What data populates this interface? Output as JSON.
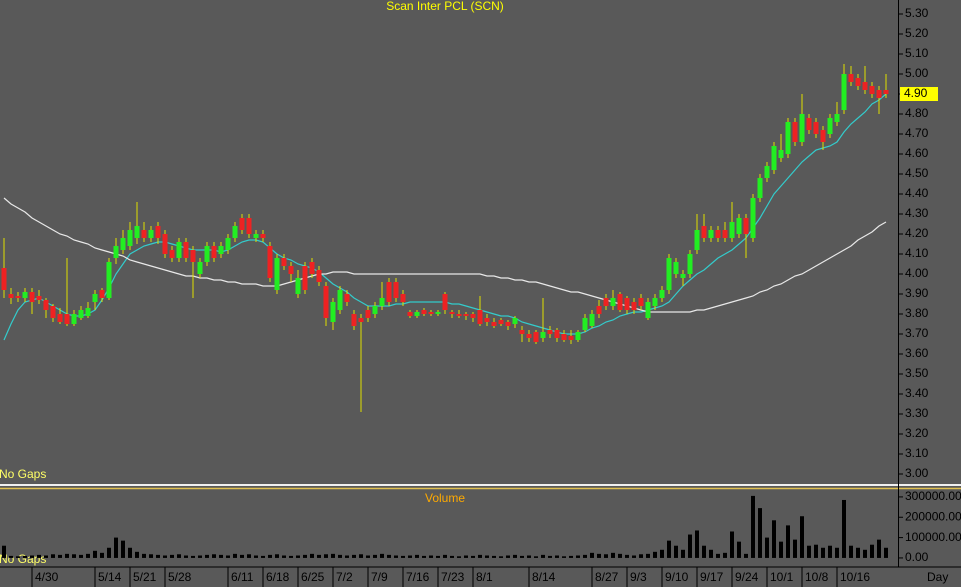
{
  "chart_data": [
    {
      "type": "candlestick",
      "title": "Scan Inter PCL (SCN)",
      "x_label": "Day",
      "annotation": "No Gaps",
      "up_color": "#22ee22",
      "down_color": "#ee2222",
      "wick_color": "#e0e000",
      "grid": false,
      "ylim": [
        2.95,
        5.37
      ],
      "yticks": [
        {
          "value": 3.0,
          "label": "3.00"
        },
        {
          "value": 3.1,
          "label": "3.10"
        },
        {
          "value": 3.2,
          "label": "3.20"
        },
        {
          "value": 3.3,
          "label": "3.30"
        },
        {
          "value": 3.4,
          "label": "3.40"
        },
        {
          "value": 3.5,
          "label": "3.50"
        },
        {
          "value": 3.6,
          "label": "3.60"
        },
        {
          "value": 3.7,
          "label": "3.70"
        },
        {
          "value": 3.8,
          "label": "3.80"
        },
        {
          "value": 3.9,
          "label": "3.90"
        },
        {
          "value": 4.0,
          "label": "4.00"
        },
        {
          "value": 4.1,
          "label": "4.10"
        },
        {
          "value": 4.2,
          "label": "4.20"
        },
        {
          "value": 4.3,
          "label": "4.30"
        },
        {
          "value": 4.4,
          "label": "4.40"
        },
        {
          "value": 4.5,
          "label": "4.50"
        },
        {
          "value": 4.6,
          "label": "4.60"
        },
        {
          "value": 4.7,
          "label": "4.70"
        },
        {
          "value": 4.8,
          "label": "4.80"
        },
        {
          "value": 4.9,
          "label": "4.90"
        },
        {
          "value": 5.0,
          "label": "5.00"
        },
        {
          "value": 5.1,
          "label": "5.10"
        },
        {
          "value": 5.2,
          "label": "5.20"
        },
        {
          "value": 5.3,
          "label": "5.30"
        }
      ],
      "last_price": {
        "value": 4.9,
        "label": "4.90"
      },
      "categories": [
        null,
        null,
        null,
        null,
        "4/30",
        null,
        null,
        null,
        null,
        null,
        null,
        null,
        null,
        "5/14",
        null,
        null,
        null,
        null,
        "5/21",
        null,
        null,
        null,
        null,
        "5/28",
        null,
        null,
        null,
        null,
        null,
        null,
        null,
        null,
        "6/11",
        null,
        null,
        null,
        null,
        "6/18",
        null,
        null,
        null,
        null,
        "6/25",
        null,
        null,
        null,
        null,
        "7/2",
        null,
        null,
        null,
        null,
        "7/9",
        null,
        null,
        null,
        null,
        "7/16",
        null,
        null,
        null,
        null,
        "7/23",
        null,
        null,
        null,
        null,
        "8/1",
        null,
        null,
        null,
        null,
        null,
        null,
        null,
        "8/14",
        null,
        null,
        null,
        null,
        null,
        null,
        null,
        null,
        "8/27",
        null,
        null,
        null,
        null,
        "9/3",
        null,
        null,
        null,
        null,
        "9/10",
        null,
        null,
        null,
        null,
        "9/17",
        null,
        null,
        null,
        null,
        "9/24",
        null,
        null,
        null,
        null,
        "10/1",
        null,
        null,
        null,
        null,
        "10/8",
        null,
        null,
        null,
        null,
        "10/16",
        null,
        null,
        null,
        null,
        null,
        null,
        null
      ],
      "open": [
        4.03,
        3.9,
        3.89,
        3.88,
        3.91,
        3.89,
        3.87,
        3.84,
        3.8,
        3.8,
        3.75,
        3.78,
        3.79,
        3.86,
        3.92,
        3.88,
        4.08,
        4.12,
        4.14,
        4.18,
        4.22,
        4.18,
        4.24,
        4.2,
        4.12,
        4.08,
        4.16,
        4.12,
        4.0,
        4.06,
        4.14,
        4.1,
        4.12,
        4.18,
        4.28,
        4.28,
        4.18,
        4.2,
        4.14,
        3.92,
        4.08,
        4.04,
        3.9,
        4.04,
        4.06,
        4.02,
        3.94,
        3.76,
        3.82,
        3.9,
        3.8,
        3.78,
        3.82,
        3.8,
        3.84,
        3.96,
        3.96,
        3.9,
        3.81,
        3.79,
        3.82,
        3.81,
        3.8,
        3.9,
        3.81,
        3.8,
        3.8,
        3.8,
        3.82,
        3.78,
        3.76,
        3.77,
        3.76,
        3.75,
        3.72,
        3.7,
        3.71,
        3.68,
        3.72,
        3.72,
        3.7,
        3.69,
        3.67,
        3.72,
        3.74,
        3.84,
        3.88,
        3.84,
        3.9,
        3.88,
        3.86,
        3.88,
        3.78,
        3.84,
        3.88,
        3.92,
        4.0,
        3.98,
        4.0,
        4.12,
        4.24,
        4.18,
        4.22,
        4.22,
        4.18,
        4.2,
        4.28,
        4.18,
        4.38,
        4.48,
        4.52,
        4.58,
        4.6,
        4.76,
        4.66,
        4.78,
        4.76,
        4.72,
        4.7,
        4.76,
        4.82,
        5.0,
        4.98,
        4.96,
        4.94,
        4.92,
        4.92
      ],
      "high": [
        4.18,
        3.93,
        3.91,
        3.93,
        3.93,
        3.92,
        3.88,
        3.85,
        3.83,
        4.08,
        3.82,
        3.84,
        3.86,
        3.92,
        3.93,
        4.08,
        4.18,
        4.22,
        4.26,
        4.36,
        4.26,
        4.24,
        4.26,
        4.22,
        4.14,
        4.18,
        4.18,
        4.14,
        4.08,
        4.16,
        4.16,
        4.16,
        4.2,
        4.26,
        4.3,
        4.3,
        4.22,
        4.22,
        4.16,
        4.1,
        4.1,
        4.06,
        4.02,
        4.06,
        4.08,
        4.04,
        3.96,
        3.88,
        3.94,
        3.92,
        3.82,
        3.8,
        3.84,
        3.86,
        3.96,
        3.98,
        3.98,
        3.92,
        3.82,
        3.82,
        3.83,
        3.82,
        3.82,
        3.91,
        3.82,
        3.82,
        3.81,
        3.81,
        3.89,
        3.8,
        3.78,
        3.78,
        3.77,
        3.79,
        3.74,
        3.72,
        3.72,
        3.88,
        3.74,
        3.73,
        3.72,
        3.72,
        3.72,
        3.8,
        3.82,
        3.87,
        3.9,
        3.92,
        3.91,
        3.89,
        3.88,
        3.9,
        3.88,
        3.9,
        3.94,
        4.1,
        4.08,
        4.02,
        4.12,
        4.3,
        4.3,
        4.24,
        4.24,
        4.26,
        4.36,
        4.3,
        4.3,
        4.4,
        4.5,
        4.56,
        4.66,
        4.7,
        4.78,
        4.78,
        4.9,
        4.8,
        4.78,
        4.74,
        4.8,
        4.86,
        5.05,
        5.04,
        5.0,
        5.04,
        4.96,
        4.94,
        5.0
      ],
      "low": [
        3.88,
        3.85,
        3.86,
        3.86,
        3.8,
        3.85,
        3.78,
        3.76,
        3.75,
        3.74,
        3.74,
        3.77,
        3.78,
        3.82,
        3.86,
        3.87,
        4.05,
        4.1,
        4.12,
        4.15,
        4.16,
        4.16,
        4.15,
        4.08,
        4.06,
        4.06,
        4.06,
        3.88,
        3.98,
        4.04,
        4.06,
        4.08,
        4.1,
        4.16,
        4.2,
        4.18,
        4.16,
        4.16,
        3.96,
        3.9,
        4.02,
        3.96,
        3.88,
        3.9,
        3.98,
        3.94,
        3.74,
        3.72,
        3.8,
        3.84,
        3.72,
        3.31,
        3.76,
        3.78,
        3.82,
        3.84,
        3.86,
        3.84,
        3.78,
        3.78,
        3.79,
        3.79,
        3.79,
        3.8,
        3.78,
        3.78,
        3.77,
        3.76,
        3.74,
        3.74,
        3.73,
        3.74,
        3.72,
        3.73,
        3.66,
        3.66,
        3.65,
        3.66,
        3.68,
        3.66,
        3.66,
        3.65,
        3.66,
        3.71,
        3.73,
        3.78,
        3.82,
        3.82,
        3.81,
        3.8,
        3.8,
        3.82,
        3.77,
        3.82,
        3.86,
        3.9,
        3.98,
        3.94,
        3.98,
        4.1,
        4.16,
        4.16,
        4.16,
        4.16,
        4.16,
        4.18,
        4.08,
        4.16,
        4.36,
        4.46,
        4.5,
        4.56,
        4.58,
        4.64,
        4.64,
        4.7,
        4.68,
        4.62,
        4.68,
        4.74,
        4.8,
        4.94,
        4.92,
        4.9,
        4.88,
        4.8,
        4.88
      ],
      "close": [
        3.92,
        3.88,
        3.88,
        3.91,
        3.86,
        3.87,
        3.82,
        3.78,
        3.76,
        3.75,
        3.8,
        3.82,
        3.83,
        3.9,
        3.88,
        4.06,
        4.14,
        4.18,
        4.22,
        4.24,
        4.18,
        4.22,
        4.18,
        4.1,
        4.08,
        4.16,
        4.08,
        4.06,
        4.06,
        4.14,
        4.08,
        4.14,
        4.18,
        4.24,
        4.22,
        4.2,
        4.2,
        4.18,
        3.98,
        4.08,
        4.04,
        4.0,
        3.98,
        3.92,
        4.0,
        3.96,
        3.78,
        3.86,
        3.92,
        3.86,
        3.74,
        3.76,
        3.78,
        3.84,
        3.88,
        3.86,
        3.88,
        3.86,
        3.79,
        3.81,
        3.8,
        3.8,
        3.81,
        3.82,
        3.8,
        3.79,
        3.79,
        3.78,
        3.75,
        3.76,
        3.74,
        3.75,
        3.74,
        3.78,
        3.7,
        3.68,
        3.66,
        3.71,
        3.7,
        3.68,
        3.67,
        3.67,
        3.71,
        3.78,
        3.8,
        3.8,
        3.84,
        3.88,
        3.82,
        3.82,
        3.82,
        3.84,
        3.86,
        3.88,
        3.92,
        4.08,
        4.06,
        4.0,
        4.1,
        4.22,
        4.18,
        4.22,
        4.18,
        4.18,
        4.26,
        4.28,
        4.2,
        4.38,
        4.48,
        4.54,
        4.64,
        4.62,
        4.76,
        4.66,
        4.8,
        4.72,
        4.7,
        4.66,
        4.78,
        4.8,
        5.0,
        4.96,
        4.94,
        4.92,
        4.9,
        4.88,
        4.9
      ],
      "overlays": [
        {
          "color": "#33cccc",
          "values": [
            3.67,
            3.75,
            3.82,
            3.86,
            3.87,
            3.88,
            3.86,
            3.84,
            3.82,
            3.8,
            3.79,
            3.79,
            3.8,
            3.82,
            3.87,
            3.93,
            4.0,
            4.05,
            4.1,
            4.12,
            4.14,
            4.15,
            4.16,
            4.16,
            4.15,
            4.14,
            4.13,
            4.12,
            4.12,
            4.12,
            4.12,
            4.11,
            4.12,
            4.14,
            4.16,
            4.17,
            4.17,
            4.16,
            4.13,
            4.1,
            4.08,
            4.07,
            4.05,
            4.04,
            4.03,
            4.01,
            3.98,
            3.95,
            3.93,
            3.91,
            3.88,
            3.86,
            3.84,
            3.84,
            3.84,
            3.84,
            3.85,
            3.85,
            3.86,
            3.86,
            3.86,
            3.86,
            3.86,
            3.86,
            3.85,
            3.85,
            3.84,
            3.83,
            3.82,
            3.81,
            3.8,
            3.79,
            3.79,
            3.78,
            3.76,
            3.75,
            3.74,
            3.73,
            3.72,
            3.71,
            3.7,
            3.7,
            3.7,
            3.71,
            3.73,
            3.74,
            3.76,
            3.77,
            3.79,
            3.8,
            3.81,
            3.81,
            3.82,
            3.83,
            3.84,
            3.86,
            3.9,
            3.94,
            3.97,
            4.0,
            4.02,
            4.05,
            4.08,
            4.1,
            4.12,
            4.15,
            4.18,
            4.23,
            4.28,
            4.34,
            4.4,
            4.44,
            4.48,
            4.52,
            4.56,
            4.59,
            4.62,
            4.63,
            4.64,
            4.66,
            4.71,
            4.75,
            4.78,
            4.81,
            4.85,
            4.87,
            4.9
          ]
        },
        {
          "color": "#e8e8e8",
          "values": [
            4.38,
            4.35,
            4.33,
            4.31,
            4.28,
            4.26,
            4.24,
            4.22,
            4.2,
            4.19,
            4.17,
            4.16,
            4.15,
            4.13,
            4.12,
            4.11,
            4.1,
            4.09,
            4.07,
            4.06,
            4.05,
            4.04,
            4.03,
            4.02,
            4.01,
            4.0,
            3.99,
            3.99,
            3.98,
            3.98,
            3.97,
            3.97,
            3.96,
            3.96,
            3.95,
            3.95,
            3.95,
            3.94,
            3.94,
            3.94,
            3.95,
            3.96,
            3.97,
            3.98,
            3.99,
            4.0,
            4.0,
            4.01,
            4.01,
            4.01,
            4.0,
            4.0,
            4.0,
            4.0,
            4.0,
            4.0,
            4.0,
            4.0,
            4.0,
            4.0,
            4.0,
            4.0,
            4.0,
            4.0,
            4.0,
            4.0,
            4.0,
            4.0,
            4.0,
            3.99,
            3.99,
            3.98,
            3.98,
            3.97,
            3.97,
            3.96,
            3.96,
            3.95,
            3.94,
            3.93,
            3.92,
            3.91,
            3.91,
            3.9,
            3.89,
            3.88,
            3.87,
            3.86,
            3.85,
            3.84,
            3.83,
            3.82,
            3.81,
            3.81,
            3.81,
            3.81,
            3.81,
            3.81,
            3.81,
            3.82,
            3.82,
            3.83,
            3.84,
            3.85,
            3.86,
            3.87,
            3.88,
            3.89,
            3.91,
            3.92,
            3.94,
            3.95,
            3.97,
            3.99,
            4.0,
            4.02,
            4.04,
            4.06,
            4.08,
            4.1,
            4.12,
            4.14,
            4.17,
            4.19,
            4.21,
            4.24,
            4.26
          ]
        }
      ]
    },
    {
      "type": "bar",
      "title": "Volume",
      "annotation": "No Gaps",
      "color": "#000000",
      "ylim": [
        -20000,
        334000
      ],
      "yticks": [
        {
          "value": 0,
          "label": "0.00"
        },
        {
          "value": 100000,
          "label": "100000.00"
        },
        {
          "value": 200000,
          "label": "200000.00"
        },
        {
          "value": 300000,
          "label": "300000.00"
        }
      ],
      "values": [
        60000,
        10000,
        8000,
        10000,
        12000,
        15000,
        12000,
        18000,
        15000,
        20000,
        18000,
        15000,
        20000,
        35000,
        25000,
        50000,
        100000,
        85000,
        50000,
        30000,
        20000,
        18000,
        15000,
        12000,
        15000,
        18000,
        12000,
        10000,
        12000,
        15000,
        18000,
        15000,
        12000,
        20000,
        15000,
        18000,
        12000,
        10000,
        15000,
        18000,
        12000,
        10000,
        12000,
        15000,
        20000,
        15000,
        18000,
        20000,
        15000,
        12000,
        15000,
        18000,
        12000,
        15000,
        20000,
        15000,
        12000,
        10000,
        12000,
        15000,
        10000,
        12000,
        10000,
        15000,
        10000,
        8000,
        12000,
        10000,
        15000,
        12000,
        10000,
        8000,
        12000,
        15000,
        10000,
        12000,
        8000,
        15000,
        10000,
        12000,
        8000,
        10000,
        12000,
        15000,
        25000,
        20000,
        18000,
        25000,
        20000,
        15000,
        12000,
        18000,
        20000,
        30000,
        40000,
        85000,
        60000,
        40000,
        115000,
        135000,
        60000,
        40000,
        20000,
        25000,
        130000,
        80000,
        20000,
        305000,
        245000,
        100000,
        185000,
        80000,
        160000,
        90000,
        205000,
        60000,
        65000,
        50000,
        60000,
        50000,
        285000,
        60000,
        50000,
        40000,
        65000,
        90000,
        50000
      ]
    }
  ]
}
